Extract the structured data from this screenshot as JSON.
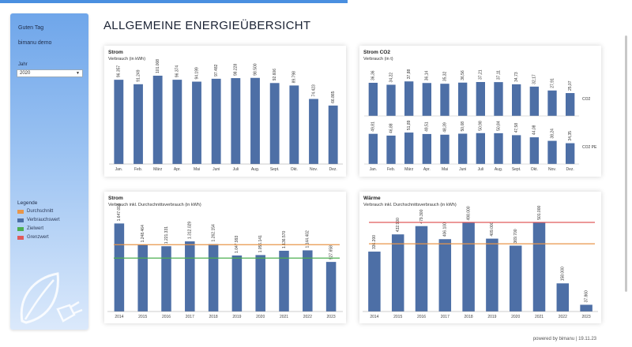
{
  "sidebar": {
    "greeting": "Guten Tag",
    "user": "bimanu demo",
    "year_label": "Jahr",
    "year_value": "2020",
    "legend_title": "Legende",
    "legend": [
      {
        "label": "Durchschnitt",
        "color": "#e8964a"
      },
      {
        "label": "Verbrauchswert",
        "color": "#4d6fa6"
      },
      {
        "label": "Zielwert",
        "color": "#4caf50"
      },
      {
        "label": "Grenzwert",
        "color": "#e05a5a"
      }
    ]
  },
  "page_title": "ALLGEMEINE ENERGIEÜBERSICHT",
  "footer": "powered by bimanu | 19.11.23",
  "colors": {
    "bar": "#4d6fa6",
    "average": "#e8964a",
    "target": "#4caf50",
    "limit": "#e05a5a"
  },
  "chart_data": [
    {
      "type": "bar",
      "title": "Strom",
      "subtitle": "Verbrauch (in kWh)",
      "categories": [
        "Jan.",
        "Feb.",
        "März",
        "Apr.",
        "Mai",
        "Juni",
        "Juli",
        "Aug.",
        "Sept.",
        "Okt.",
        "Nov.",
        "Dez."
      ],
      "values": [
        96357,
        91249,
        101008,
        96374,
        94199,
        97482,
        98228,
        98500,
        92606,
        89798,
        74423,
        66865
      ],
      "labels": [
        "96.357",
        "91.249",
        "101.008",
        "96.374",
        "94.199",
        "97.482",
        "98.228",
        "98.500",
        "92.606",
        "89.798",
        "74.423",
        "66.865"
      ],
      "ylim": [
        0,
        110000
      ]
    },
    {
      "type": "bar",
      "title": "Strom CO2",
      "subtitle": "Verbrauch (in t)",
      "categories": [
        "Jan.",
        "Feb.",
        "März",
        "Apr.",
        "Mai",
        "Juni",
        "Juli",
        "Aug.",
        "Sept.",
        "Okt.",
        "Nov.",
        "Dez."
      ],
      "series": [
        {
          "name": "CO2",
          "values": [
            36.36,
            34.22,
            37.88,
            36.14,
            35.32,
            36.56,
            37.21,
            37.11,
            34.73,
            32.17,
            27.91,
            25.07
          ],
          "labels": [
            "36,36",
            "34,22",
            "37,88",
            "36,14",
            "35,32",
            "36,56",
            "37,21",
            "37,11",
            "34,73",
            "32,17",
            "27,91",
            "25,07"
          ]
        },
        {
          "name": "CO2 PE",
          "values": [
            49.81,
            46.88,
            51.89,
            49.51,
            48.39,
            50.08,
            50.98,
            50.84,
            47.58,
            44.08,
            38.24,
            34.35
          ],
          "labels": [
            "49,81",
            "46,88",
            "51,89",
            "49,51",
            "48,39",
            "50,08",
            "50,98",
            "50,84",
            "47,58",
            "44,08",
            "38,24",
            "34,35"
          ]
        }
      ]
    },
    {
      "type": "bar",
      "title": "Strom",
      "subtitle": "Verbrauch inkl. Durchschnittsverbrauch (in kWh)",
      "categories": [
        "2014",
        "2015",
        "2016",
        "2017",
        "2018",
        "2019",
        "2020",
        "2021",
        "2022",
        "2023"
      ],
      "values": [
        1647016,
        1248464,
        1221331,
        1312029,
        1262154,
        1047993,
        1056141,
        1136570,
        1144402,
        927658
      ],
      "labels": [
        "1.647.016",
        "1.248.464",
        "1.221.331",
        "1.312.029",
        "1.262.154",
        "1.047.993",
        "1.056.141",
        "1.136.570",
        "1.144.402",
        "927.658"
      ],
      "average": 1250000,
      "target": 1000000,
      "ylim": [
        0,
        1800000
      ]
    },
    {
      "type": "bar",
      "title": "Wärme",
      "subtitle": "Verbrauch inkl. Durchschnittsverbrauch (in kWh)",
      "categories": [
        "2014",
        "2015",
        "2016",
        "2017",
        "2018",
        "2019",
        "2020",
        "2021",
        "2022",
        "2023"
      ],
      "values": [
        336200,
        432900,
        479300,
        406100,
        498000,
        409000,
        369700,
        501000,
        158000,
        37860
      ],
      "labels": [
        "336.200",
        "432.900",
        "479.300",
        "406.100",
        "498.000",
        "409.000",
        "369.700",
        "501.000",
        "158.000",
        "37.860"
      ],
      "average": 380000,
      "limit": 500000,
      "ylim": [
        0,
        540000
      ]
    }
  ]
}
